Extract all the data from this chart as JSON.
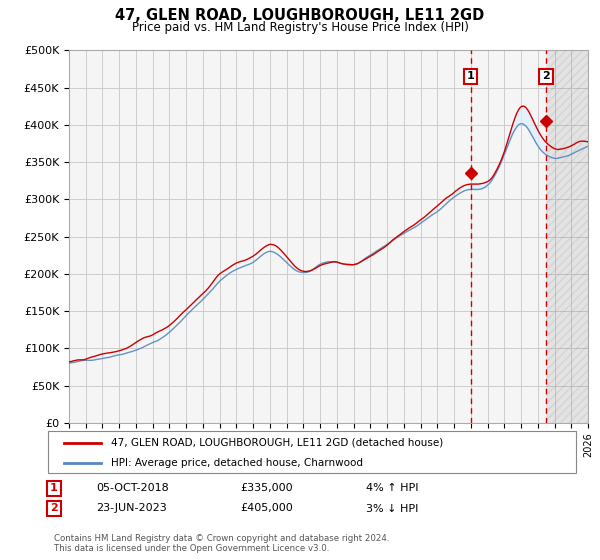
{
  "title": "47, GLEN ROAD, LOUGHBOROUGH, LE11 2GD",
  "subtitle": "Price paid vs. HM Land Registry's House Price Index (HPI)",
  "legend_label_1": "47, GLEN ROAD, LOUGHBOROUGH, LE11 2GD (detached house)",
  "legend_label_2": "HPI: Average price, detached house, Charnwood",
  "marker1_label": "1",
  "marker1_date": "05-OCT-2018",
  "marker1_price": "£335,000",
  "marker1_hpi": "4% ↑ HPI",
  "marker1_year": 2019.0,
  "marker1_value": 335000,
  "marker2_label": "2",
  "marker2_date": "23-JUN-2023",
  "marker2_price": "£405,000",
  "marker2_hpi": "3% ↓ HPI",
  "marker2_year": 2023.5,
  "marker2_value": 405000,
  "footnote": "Contains HM Land Registry data © Crown copyright and database right 2024.\nThis data is licensed under the Open Government Licence v3.0.",
  "xmin": 1995,
  "xmax": 2026,
  "ymin": 0,
  "ymax": 500000,
  "yticks": [
    0,
    50000,
    100000,
    150000,
    200000,
    250000,
    300000,
    350000,
    400000,
    450000,
    500000
  ],
  "line_color_red": "#cc0000",
  "line_color_blue": "#5588bb",
  "fill_color": "#ddeeff",
  "grid_color": "#cccccc",
  "bg_color": "#f5f5f5",
  "vline_color": "#cc0000",
  "marker_box_color": "#cc0000"
}
